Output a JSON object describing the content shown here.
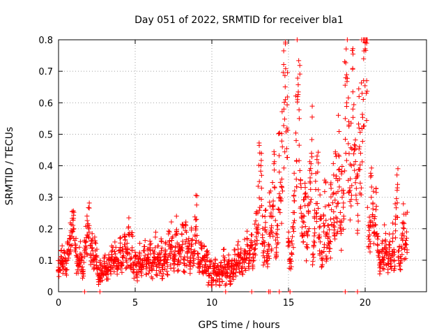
{
  "chart_data": {
    "type": "scatter",
    "title": "Day 051 of 2022, SRMTID for receiver bla1",
    "xlabel": "GPS time / hours",
    "ylabel": "SRMTID / TECUs",
    "xlim": [
      0,
      24
    ],
    "ylim": [
      0,
      0.8
    ],
    "xticks": [
      0,
      5,
      10,
      15,
      20
    ],
    "xtick_labels": [
      "0",
      "5",
      "10",
      "15",
      "20"
    ],
    "yticks": [
      0,
      0.1,
      0.2,
      0.3,
      0.4,
      0.5,
      0.6,
      0.7,
      0.8
    ],
    "ytick_labels": [
      "0",
      "0.1",
      "0.2",
      "0.3",
      "0.4",
      "0.5",
      "0.6",
      "0.7",
      "0.8"
    ],
    "grid": true,
    "marker": "+",
    "color": "#ff0000",
    "series": [
      {
        "name": "SRMTID",
        "points": [
          [
            0.0,
            0.07
          ],
          [
            0.1,
            0.09
          ],
          [
            0.2,
            0.11
          ],
          [
            0.3,
            0.08
          ],
          [
            0.4,
            0.1
          ],
          [
            0.5,
            0.07
          ],
          [
            0.6,
            0.12
          ],
          [
            0.7,
            0.15
          ],
          [
            0.8,
            0.17
          ],
          [
            0.9,
            0.19
          ],
          [
            1.0,
            0.2
          ],
          [
            1.1,
            0.14
          ],
          [
            1.2,
            0.09
          ],
          [
            1.3,
            0.08
          ],
          [
            1.4,
            0.12
          ],
          [
            1.5,
            0.1
          ],
          [
            1.6,
            0.07
          ],
          [
            1.7,
            0.13
          ],
          [
            1.8,
            0.16
          ],
          [
            1.9,
            0.18
          ],
          [
            2.0,
            0.21
          ],
          [
            2.1,
            0.12
          ],
          [
            2.2,
            0.14
          ],
          [
            2.3,
            0.1
          ],
          [
            2.4,
            0.13
          ],
          [
            2.5,
            0.11
          ],
          [
            2.6,
            0.05
          ],
          [
            2.7,
            0.07
          ],
          [
            2.8,
            0.06
          ],
          [
            2.9,
            0.08
          ],
          [
            3.0,
            0.09
          ],
          [
            3.1,
            0.06
          ],
          [
            3.2,
            0.07
          ],
          [
            3.3,
            0.1
          ],
          [
            3.4,
            0.08
          ],
          [
            3.5,
            0.11
          ],
          [
            3.6,
            0.09
          ],
          [
            3.7,
            0.12
          ],
          [
            3.8,
            0.08
          ],
          [
            3.9,
            0.1
          ],
          [
            4.0,
            0.13
          ],
          [
            4.1,
            0.09
          ],
          [
            4.2,
            0.11
          ],
          [
            4.3,
            0.15
          ],
          [
            4.4,
            0.1
          ],
          [
            4.5,
            0.12
          ],
          [
            4.6,
            0.18
          ],
          [
            4.7,
            0.08
          ],
          [
            4.8,
            0.14
          ],
          [
            4.9,
            0.07
          ],
          [
            5.0,
            0.11
          ],
          [
            5.1,
            0.06
          ],
          [
            5.2,
            0.09
          ],
          [
            5.3,
            0.12
          ],
          [
            5.4,
            0.07
          ],
          [
            5.5,
            0.1
          ],
          [
            5.6,
            0.13
          ],
          [
            5.7,
            0.08
          ],
          [
            5.8,
            0.11
          ],
          [
            5.9,
            0.09
          ],
          [
            6.0,
            0.12
          ],
          [
            6.1,
            0.07
          ],
          [
            6.2,
            0.1
          ],
          [
            6.3,
            0.14
          ],
          [
            6.4,
            0.08
          ],
          [
            6.5,
            0.11
          ],
          [
            6.6,
            0.09
          ],
          [
            6.7,
            0.13
          ],
          [
            6.8,
            0.07
          ],
          [
            6.9,
            0.1
          ],
          [
            7.0,
            0.12
          ],
          [
            7.1,
            0.08
          ],
          [
            7.2,
            0.15
          ],
          [
            7.3,
            0.11
          ],
          [
            7.4,
            0.17
          ],
          [
            7.5,
            0.09
          ],
          [
            7.6,
            0.13
          ],
          [
            7.7,
            0.19
          ],
          [
            7.8,
            0.1
          ],
          [
            7.9,
            0.12
          ],
          [
            8.0,
            0.14
          ],
          [
            8.1,
            0.16
          ],
          [
            8.2,
            0.09
          ],
          [
            8.3,
            0.21
          ],
          [
            8.4,
            0.11
          ],
          [
            8.5,
            0.13
          ],
          [
            8.6,
            0.08
          ],
          [
            8.7,
            0.15
          ],
          [
            8.8,
            0.1
          ],
          [
            8.9,
            0.18
          ],
          [
            9.0,
            0.23
          ],
          [
            9.1,
            0.12
          ],
          [
            9.2,
            0.09
          ],
          [
            9.3,
            0.14
          ],
          [
            9.4,
            0.08
          ],
          [
            9.5,
            0.11
          ],
          [
            9.6,
            0.07
          ],
          [
            9.7,
            0.1
          ],
          [
            9.8,
            0.05
          ],
          [
            9.9,
            0.08
          ],
          [
            10.0,
            0.03
          ],
          [
            10.1,
            0.06
          ],
          [
            10.2,
            0.09
          ],
          [
            10.3,
            0.05
          ],
          [
            10.4,
            0.07
          ],
          [
            10.5,
            0.04
          ],
          [
            10.6,
            0.08
          ],
          [
            10.7,
            0.06
          ],
          [
            10.8,
            0.1
          ],
          [
            10.9,
            0.05
          ],
          [
            11.0,
            0.07
          ],
          [
            11.1,
            0.09
          ],
          [
            11.2,
            0.05
          ],
          [
            11.3,
            0.08
          ],
          [
            11.4,
            0.06
          ],
          [
            11.5,
            0.1
          ],
          [
            11.6,
            0.07
          ],
          [
            11.7,
            0.12
          ],
          [
            11.8,
            0.09
          ],
          [
            11.9,
            0.11
          ],
          [
            12.0,
            0.08
          ],
          [
            12.1,
            0.13
          ],
          [
            12.2,
            0.1
          ],
          [
            12.3,
            0.15
          ],
          [
            12.4,
            0.09
          ],
          [
            12.5,
            0.12
          ],
          [
            12.6,
            0.14
          ],
          [
            12.7,
            0.11
          ],
          [
            12.8,
            0.16
          ],
          [
            12.9,
            0.2
          ],
          [
            13.0,
            0.25
          ],
          [
            13.1,
            0.35
          ],
          [
            13.2,
            0.4
          ],
          [
            13.3,
            0.18
          ],
          [
            13.4,
            0.13
          ],
          [
            13.5,
            0.22
          ],
          [
            13.6,
            0.1
          ],
          [
            13.7,
            0.15
          ],
          [
            13.8,
            0.24
          ],
          [
            13.9,
            0.19
          ],
          [
            14.0,
            0.27
          ],
          [
            14.1,
            0.33
          ],
          [
            14.2,
            0.14
          ],
          [
            14.3,
            0.21
          ],
          [
            14.4,
            0.38
          ],
          [
            14.5,
            0.29
          ],
          [
            14.6,
            0.46
          ],
          [
            14.7,
            0.58
          ],
          [
            14.8,
            0.61
          ],
          [
            14.9,
            0.52
          ],
          [
            15.0,
            0.16
          ],
          [
            15.1,
            0.09
          ],
          [
            15.2,
            0.12
          ],
          [
            15.3,
            0.2
          ],
          [
            15.4,
            0.32
          ],
          [
            15.5,
            0.48
          ],
          [
            15.6,
            0.62
          ],
          [
            15.7,
            0.55
          ],
          [
            15.8,
            0.27
          ],
          [
            15.9,
            0.18
          ],
          [
            16.0,
            0.22
          ],
          [
            16.1,
            0.3
          ],
          [
            16.2,
            0.15
          ],
          [
            16.3,
            0.25
          ],
          [
            16.4,
            0.35
          ],
          [
            16.5,
            0.44
          ],
          [
            16.6,
            0.12
          ],
          [
            16.7,
            0.2
          ],
          [
            16.8,
            0.28
          ],
          [
            16.9,
            0.38
          ],
          [
            17.0,
            0.17
          ],
          [
            17.1,
            0.24
          ],
          [
            17.2,
            0.1
          ],
          [
            17.3,
            0.19
          ],
          [
            17.4,
            0.27
          ],
          [
            17.5,
            0.14
          ],
          [
            17.6,
            0.21
          ],
          [
            17.7,
            0.16
          ],
          [
            17.8,
            0.26
          ],
          [
            17.9,
            0.31
          ],
          [
            18.0,
            0.22
          ],
          [
            18.1,
            0.36
          ],
          [
            18.2,
            0.28
          ],
          [
            18.3,
            0.43
          ],
          [
            18.4,
            0.2
          ],
          [
            18.5,
            0.3
          ],
          [
            18.6,
            0.24
          ],
          [
            18.7,
            0.55
          ],
          [
            18.8,
            0.6
          ],
          [
            18.9,
            0.47
          ],
          [
            19.0,
            0.33
          ],
          [
            19.1,
            0.4
          ],
          [
            19.2,
            0.58
          ],
          [
            19.3,
            0.45
          ],
          [
            19.4,
            0.36
          ],
          [
            19.5,
            0.28
          ],
          [
            19.6,
            0.52
          ],
          [
            19.7,
            0.44
          ],
          [
            19.8,
            0.63
          ],
          [
            19.9,
            0.74
          ],
          [
            20.0,
            0.79
          ],
          [
            20.1,
            0.67
          ],
          [
            20.2,
            0.21
          ],
          [
            20.3,
            0.18
          ],
          [
            20.4,
            0.3
          ],
          [
            20.5,
            0.24
          ],
          [
            20.6,
            0.19
          ],
          [
            20.7,
            0.26
          ],
          [
            20.8,
            0.15
          ],
          [
            20.9,
            0.11
          ],
          [
            21.0,
            0.08
          ],
          [
            21.1,
            0.13
          ],
          [
            21.2,
            0.1
          ],
          [
            21.3,
            0.16
          ],
          [
            21.4,
            0.12
          ],
          [
            21.5,
            0.09
          ],
          [
            21.6,
            0.14
          ],
          [
            21.7,
            0.11
          ],
          [
            21.8,
            0.17
          ],
          [
            21.9,
            0.1
          ],
          [
            22.0,
            0.24
          ],
          [
            22.1,
            0.33
          ],
          [
            22.2,
            0.13
          ],
          [
            22.3,
            0.09
          ],
          [
            22.4,
            0.18
          ],
          [
            22.5,
            0.22
          ],
          [
            22.6,
            0.14
          ],
          [
            22.7,
            0.19
          ]
        ]
      }
    ],
    "zero_markers_x": [
      1.7,
      2.7,
      10.9,
      12.6,
      13.7,
      13.8,
      14.4,
      15.1,
      18.7,
      19.5
    ]
  }
}
